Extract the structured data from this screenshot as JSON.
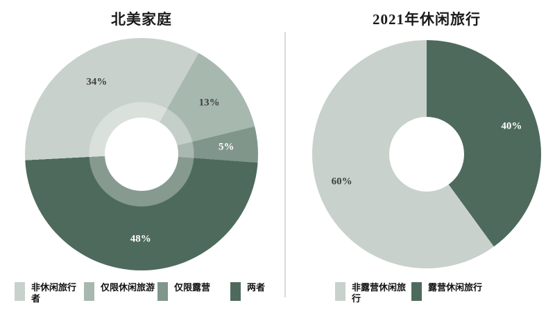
{
  "page": {
    "background": "#ffffff",
    "divider_color": "#d9d9d9"
  },
  "charts": [
    {
      "title": "北美家庭",
      "type": "donut",
      "start_angle_deg": 267,
      "label_radius": 0.73,
      "slices": [
        {
          "name": "非休闲旅行者",
          "pct": 34,
          "display": "34%",
          "color": "#c8d1cb",
          "label_color": "#404040"
        },
        {
          "name": "仅限休闲旅游",
          "pct": 13,
          "display": "13%",
          "color": "#a7b8ae",
          "label_color": "#404040"
        },
        {
          "name": "仅限露营",
          "pct": 5,
          "display": "5%",
          "color": "#80968b",
          "label_color": "#ffffff"
        },
        {
          "name": "两者",
          "pct": 48,
          "display": "48%",
          "color": "#4e6a5c",
          "label_color": "#ffffff"
        }
      ]
    },
    {
      "title": "2021年休闲旅行",
      "type": "donut",
      "start_angle_deg": 144,
      "label_radius": 0.78,
      "slices": [
        {
          "name": "非露营休闲旅行",
          "pct": 60,
          "display": "60%",
          "color": "#c8d1cb",
          "label_color": "#404040"
        },
        {
          "name": "露营休闲旅行",
          "pct": 40,
          "display": "40%",
          "color": "#4e6a5c",
          "label_color": "#ffffff"
        }
      ]
    }
  ],
  "chart_data": [
    {
      "type": "pie",
      "subtype": "donut",
      "title": "北美家庭",
      "categories": [
        "非休闲旅行者",
        "仅限休闲旅游",
        "仅限露营",
        "两者"
      ],
      "values": [
        34,
        13,
        5,
        48
      ],
      "unit": "%",
      "colors": [
        "#c8d1cb",
        "#a7b8ae",
        "#80968b",
        "#4e6a5c"
      ],
      "legend_position": "bottom",
      "data_labels": [
        "34%",
        "13%",
        "5%",
        "48%"
      ]
    },
    {
      "type": "pie",
      "subtype": "donut",
      "title": "2021年休闲旅行",
      "categories": [
        "非露营休闲旅行",
        "露营休闲旅行"
      ],
      "values": [
        60,
        40
      ],
      "unit": "%",
      "colors": [
        "#c8d1cb",
        "#4e6a5c"
      ],
      "legend_position": "bottom",
      "data_labels": [
        "60%",
        "40%"
      ]
    }
  ]
}
